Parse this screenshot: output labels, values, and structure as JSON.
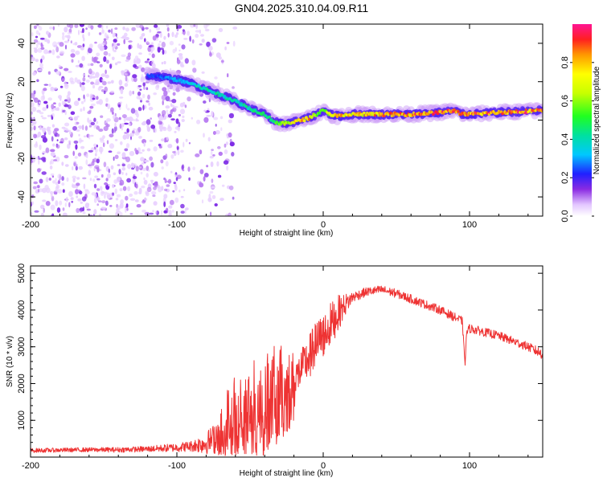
{
  "page": {
    "title": "GN04.2025.310.04.09.R11"
  },
  "chart_data": [
    {
      "type": "heatmap",
      "title": "",
      "xlabel": "Height of straight line (km)",
      "ylabel": "Frequency (Hz)",
      "xlim": [
        -200,
        150
      ],
      "ylim": [
        -50,
        50
      ],
      "xticks": [
        -200,
        -100,
        0,
        100
      ],
      "yticks": [
        -40,
        -20,
        0,
        20,
        40
      ],
      "colorbar": {
        "label": "Normalized spectral amplitude",
        "range": [
          0.0,
          1.0
        ],
        "ticks": [
          0.0,
          0.2,
          0.4,
          0.6,
          0.8
        ],
        "tick_labels": [
          "0.0",
          "0.2",
          "0.4",
          "0.6",
          "0.8"
        ]
      },
      "ridge": {
        "x": [
          -115,
          -100,
          -90,
          -80,
          -70,
          -60,
          -50,
          -40,
          -35,
          -30,
          -20,
          -10,
          -5,
          0,
          5,
          10,
          20,
          40,
          60,
          80,
          90,
          95,
          100,
          120,
          150
        ],
        "y": [
          23,
          21,
          19,
          16,
          13,
          10,
          6,
          3,
          0,
          -2,
          -1,
          1,
          3,
          5,
          3,
          2,
          3,
          3,
          3,
          4,
          5,
          3,
          3,
          4,
          5
        ],
        "amplitude": [
          0.25,
          0.35,
          0.4,
          0.45,
          0.45,
          0.45,
          0.45,
          0.5,
          0.5,
          0.6,
          0.8,
          0.9,
          0.7,
          0.6,
          0.8,
          0.9,
          0.8,
          0.9,
          0.9,
          0.95,
          0.95,
          0.9,
          0.95,
          0.95,
          0.95
        ]
      },
      "noise_region_x": [
        -200,
        -75
      ]
    },
    {
      "type": "line",
      "title": "",
      "xlabel": "Height of straight line (km)",
      "ylabel": "SNR (10 * v/v)",
      "xlim": [
        -200,
        150
      ],
      "ylim": [
        0,
        5200
      ],
      "xticks": [
        -200,
        -100,
        0,
        100
      ],
      "yticks": [
        1000,
        2000,
        3000,
        4000,
        5000
      ],
      "series": [
        {
          "name": "SNR",
          "color": "#ee3333",
          "x": [
            -200,
            -180,
            -160,
            -140,
            -120,
            -100,
            -90,
            -80,
            -75,
            -70,
            -65,
            -60,
            -50,
            -40,
            -30,
            -20,
            -18,
            -10,
            -5,
            0,
            5,
            10,
            15,
            20,
            30,
            40,
            50,
            60,
            70,
            80,
            90,
            95,
            97,
            98,
            100,
            110,
            120,
            130,
            140,
            150
          ],
          "y": [
            180,
            190,
            200,
            200,
            220,
            260,
            300,
            380,
            500,
            700,
            900,
            1100,
            1300,
            1500,
            1700,
            1900,
            2200,
            2700,
            3000,
            3300,
            3600,
            3900,
            4150,
            4350,
            4500,
            4550,
            4450,
            4300,
            4150,
            4000,
            3800,
            3700,
            2500,
            3400,
            3500,
            3400,
            3300,
            3150,
            3000,
            2800
          ],
          "noise_amplitude": [
            60,
            60,
            60,
            70,
            80,
            120,
            150,
            300,
            400,
            800,
            1100,
            1200,
            1300,
            1400,
            1400,
            1000,
            500,
            600,
            700,
            600,
            600,
            500,
            300,
            150,
            120,
            120,
            120,
            120,
            120,
            120,
            120,
            120,
            0,
            120,
            120,
            120,
            120,
            120,
            120,
            150
          ]
        }
      ]
    }
  ],
  "colors": {
    "line": "#ee3333",
    "axis": "#000000"
  }
}
